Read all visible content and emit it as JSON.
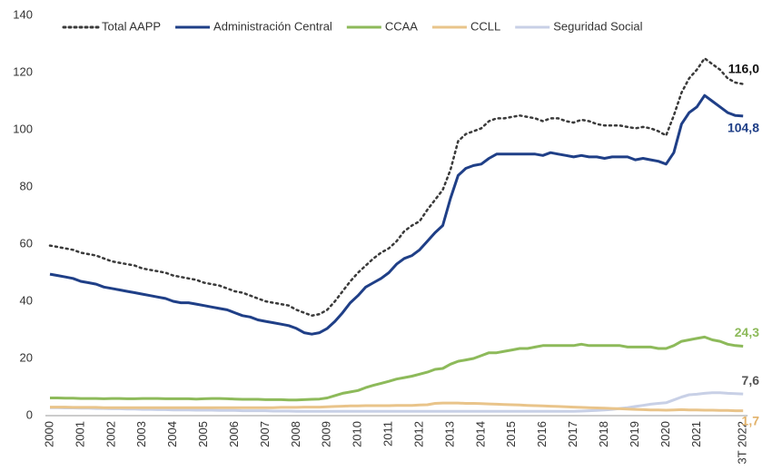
{
  "chart_data": {
    "type": "line",
    "categories": [
      "2000",
      null,
      null,
      null,
      "2001",
      null,
      null,
      null,
      "2002",
      null,
      null,
      null,
      "2003",
      null,
      null,
      null,
      "2004",
      null,
      null,
      null,
      "2005",
      null,
      null,
      null,
      "2006",
      null,
      null,
      null,
      "2007",
      null,
      null,
      null,
      "2008",
      null,
      null,
      null,
      "2009",
      null,
      null,
      null,
      "2010",
      null,
      null,
      null,
      "2011",
      null,
      null,
      null,
      "2012",
      null,
      null,
      null,
      "2013",
      null,
      null,
      null,
      "2014",
      null,
      null,
      null,
      "2015",
      null,
      null,
      null,
      "2016",
      null,
      null,
      null,
      "2017",
      null,
      null,
      null,
      "2018",
      null,
      null,
      null,
      "2019",
      null,
      null,
      null,
      "2020",
      null,
      null,
      null,
      "2021",
      null,
      null,
      null,
      null,
      null,
      "3T 2022"
    ],
    "ylim": [
      0,
      140
    ],
    "yticks": [
      0,
      20,
      40,
      60,
      80,
      100,
      120,
      140
    ],
    "grid": false,
    "legend": "top",
    "series": [
      {
        "name": "Total AAPP",
        "color": "#3a3a3a",
        "style": "dotted",
        "values": [
          59.5,
          59,
          58.5,
          58,
          57,
          56.5,
          56,
          55,
          54,
          53.5,
          53,
          52.5,
          51.5,
          51,
          50.5,
          50,
          49,
          48.5,
          48,
          47.5,
          46.5,
          46,
          45.5,
          44.5,
          43.5,
          43,
          42,
          41,
          40,
          39.5,
          39,
          38.5,
          37,
          36,
          35,
          35.5,
          37,
          40,
          43.5,
          47,
          50,
          52.5,
          55,
          57,
          58.5,
          61,
          64.5,
          66.5,
          68,
          72,
          75.5,
          79,
          86,
          96,
          98.5,
          99.5,
          100.5,
          103,
          104,
          104,
          104.5,
          105,
          104.5,
          104,
          103,
          104,
          104,
          103,
          102.5,
          103.5,
          103,
          102,
          101.5,
          101.5,
          101.5,
          101,
          100.5,
          101,
          100.5,
          99.5,
          98,
          105,
          113,
          118,
          121,
          125,
          123,
          121,
          118,
          116.5,
          116.0
        ]
      },
      {
        "name": "Administración Central",
        "color": "#1f3f87",
        "style": "solid",
        "values": [
          49.5,
          49,
          48.5,
          48,
          47,
          46.5,
          46,
          45,
          44.5,
          44,
          43.5,
          43,
          42.5,
          42,
          41.5,
          41,
          40,
          39.5,
          39.5,
          39,
          38.5,
          38,
          37.5,
          37,
          36,
          35,
          34.5,
          33.5,
          33,
          32.5,
          32,
          31.5,
          30.5,
          29,
          28.5,
          29,
          30.5,
          33,
          36,
          39.5,
          42,
          45,
          46.5,
          48,
          50,
          53,
          55,
          56,
          58,
          61,
          64,
          66.5,
          76,
          84,
          86.5,
          87.5,
          88,
          90,
          91.5,
          91.5,
          91.5,
          91.5,
          91.5,
          91.5,
          91,
          92,
          91.5,
          91,
          90.5,
          91,
          90.5,
          90.5,
          90,
          90.5,
          90.5,
          90.5,
          89.5,
          90,
          89.5,
          89,
          88,
          92,
          102,
          106,
          108,
          112,
          110,
          108,
          106,
          105,
          104.8
        ]
      },
      {
        "name": "CCAA",
        "color": "#8dba5a",
        "style": "solid",
        "values": [
          6.2,
          6.2,
          6.1,
          6.1,
          6,
          6,
          6,
          5.9,
          6,
          6,
          5.9,
          5.9,
          6,
          6,
          6,
          5.9,
          5.9,
          5.9,
          5.9,
          5.8,
          5.9,
          6,
          6,
          5.9,
          5.8,
          5.7,
          5.7,
          5.7,
          5.6,
          5.6,
          5.6,
          5.5,
          5.5,
          5.6,
          5.7,
          5.8,
          6.2,
          7,
          7.8,
          8.3,
          8.8,
          9.8,
          10.6,
          11.3,
          12,
          12.8,
          13.3,
          13.8,
          14.5,
          15.2,
          16.2,
          16.5,
          18,
          19,
          19.5,
          20,
          21,
          22,
          22,
          22.5,
          23,
          23.5,
          23.5,
          24,
          24.5,
          24.5,
          24.5,
          24.5,
          24.5,
          25,
          24.5,
          24.5,
          24.5,
          24.5,
          24.5,
          24,
          24,
          24,
          24,
          23.5,
          23.5,
          24.5,
          26,
          26.5,
          27,
          27.5,
          26.5,
          26,
          25,
          24.5,
          24.3
        ]
      },
      {
        "name": "CCLL",
        "color": "#e9c48a",
        "style": "solid",
        "values": [
          3,
          3,
          3,
          2.9,
          2.9,
          2.9,
          2.9,
          2.8,
          2.8,
          2.8,
          2.8,
          2.8,
          2.8,
          2.8,
          2.8,
          2.8,
          2.8,
          2.8,
          2.8,
          2.8,
          2.8,
          2.8,
          2.8,
          2.8,
          2.8,
          2.8,
          2.8,
          2.8,
          2.8,
          2.8,
          2.9,
          2.9,
          2.9,
          3,
          3,
          3,
          3.1,
          3.2,
          3.3,
          3.4,
          3.4,
          3.5,
          3.5,
          3.5,
          3.5,
          3.6,
          3.6,
          3.6,
          3.7,
          3.8,
          4.3,
          4.4,
          4.4,
          4.4,
          4.3,
          4.3,
          4.2,
          4.1,
          4,
          3.9,
          3.8,
          3.7,
          3.6,
          3.5,
          3.4,
          3.3,
          3.2,
          3.1,
          3,
          2.9,
          2.8,
          2.7,
          2.6,
          2.5,
          2.4,
          2.3,
          2.2,
          2.1,
          2,
          2,
          1.9,
          2,
          2.1,
          2,
          2,
          1.9,
          1.9,
          1.8,
          1.8,
          1.7,
          1.7
        ]
      },
      {
        "name": "Seguridad Social",
        "color": "#c8d0e6",
        "style": "solid",
        "values": [
          2.8,
          2.8,
          2.7,
          2.7,
          2.6,
          2.6,
          2.5,
          2.5,
          2.4,
          2.4,
          2.3,
          2.3,
          2.2,
          2.2,
          2.1,
          2.1,
          2,
          2,
          2,
          1.9,
          1.9,
          1.9,
          1.8,
          1.8,
          1.8,
          1.7,
          1.7,
          1.7,
          1.7,
          1.6,
          1.6,
          1.6,
          1.5,
          1.5,
          1.5,
          1.5,
          1.5,
          1.5,
          1.5,
          1.5,
          1.5,
          1.5,
          1.5,
          1.5,
          1.5,
          1.5,
          1.5,
          1.5,
          1.5,
          1.5,
          1.5,
          1.5,
          1.5,
          1.5,
          1.5,
          1.5,
          1.5,
          1.5,
          1.5,
          1.5,
          1.5,
          1.5,
          1.5,
          1.5,
          1.5,
          1.5,
          1.5,
          1.5,
          1.5,
          1.6,
          1.7,
          1.8,
          2,
          2.2,
          2.5,
          2.8,
          3.2,
          3.6,
          4,
          4.3,
          4.5,
          5.5,
          6.5,
          7.3,
          7.5,
          7.8,
          8,
          8,
          7.8,
          7.7,
          7.6
        ]
      }
    ],
    "annotations": [
      {
        "label": "116,0",
        "value": 116.0,
        "color": "#111111"
      },
      {
        "label": "104,8",
        "value": 104.8,
        "color": "#1f3f87"
      },
      {
        "label": "24,3",
        "value": 24.3,
        "color": "#8dba5a"
      },
      {
        "label": "7,6",
        "value": 7.6,
        "color": "#555555"
      },
      {
        "label": "1,7",
        "value": 1.7,
        "color": "#e2b26a"
      }
    ]
  }
}
